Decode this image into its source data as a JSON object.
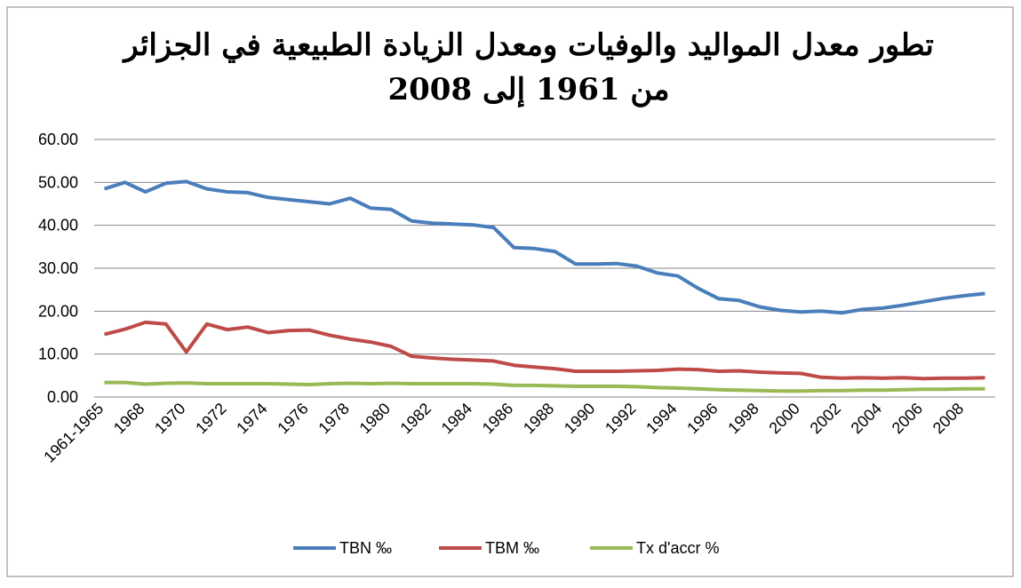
{
  "chart_data": {
    "type": "line",
    "title": [
      "تطور معدل المواليد والوفيات ومعدل الزيادة الطبيعية في الجزائر",
      "من 1961 إلى 2008"
    ],
    "categories": [
      "1961-1965",
      null,
      "1968",
      null,
      "1970",
      null,
      "1972",
      null,
      "1974",
      null,
      "1976",
      null,
      "1978",
      null,
      "1980",
      null,
      "1982",
      null,
      "1984",
      null,
      "1986",
      null,
      "1988",
      null,
      "1990",
      null,
      "1992",
      null,
      "1994",
      null,
      "1996",
      null,
      "1998",
      null,
      "2000",
      null,
      "2002",
      null,
      "2004",
      null,
      "2006",
      null,
      "2008",
      null
    ],
    "series": [
      {
        "name": "TBN ‰",
        "color": "#4a7ebb",
        "values": [
          48.5,
          50,
          47.8,
          49.8,
          50.2,
          48.5,
          47.8,
          47.6,
          46.5,
          46,
          45.5,
          45,
          46.3,
          44,
          43.7,
          41,
          40.5,
          40.3,
          40.1,
          39.5,
          34.8,
          34.6,
          33.9,
          31,
          31,
          31.1,
          30.5,
          28.9,
          28.2,
          25.3,
          22.9,
          22.5,
          21,
          20.2,
          19.8,
          20,
          19.6,
          20.4,
          20.7,
          21.4,
          22.2,
          23,
          23.6,
          24.1
        ]
      },
      {
        "name": "TBM ‰",
        "color": "#be4b48",
        "values": [
          14.6,
          15.8,
          17.4,
          17,
          10.5,
          17,
          15.7,
          16.3,
          15,
          15.5,
          15.6,
          14.4,
          13.5,
          12.8,
          11.8,
          9.5,
          9.1,
          8.8,
          8.6,
          8.4,
          7.4,
          7,
          6.6,
          6,
          6,
          6,
          6.1,
          6.2,
          6.5,
          6.4,
          6,
          6.1,
          5.8,
          5.6,
          5.5,
          4.6,
          4.4,
          4.5,
          4.4,
          4.5,
          4.3,
          4.4,
          4.4,
          4.5
        ]
      },
      {
        "name": "Tx d'accr %",
        "color": "#98b954",
        "values": [
          3.4,
          3.4,
          3.0,
          3.2,
          3.3,
          3.1,
          3.1,
          3.1,
          3.1,
          3.0,
          2.9,
          3.1,
          3.2,
          3.1,
          3.2,
          3.1,
          3.1,
          3.1,
          3.1,
          3.0,
          2.7,
          2.7,
          2.6,
          2.5,
          2.5,
          2.5,
          2.4,
          2.2,
          2.1,
          1.9,
          1.7,
          1.6,
          1.5,
          1.4,
          1.4,
          1.5,
          1.5,
          1.6,
          1.6,
          1.7,
          1.8,
          1.8,
          1.9,
          1.9
        ]
      }
    ],
    "ylim": [
      0,
      60
    ],
    "yticks": [
      {
        "value": 0,
        "label": "0.00"
      },
      {
        "value": 10,
        "label": "10.00"
      },
      {
        "value": 20,
        "label": "20.00"
      },
      {
        "value": 30,
        "label": "30.00"
      },
      {
        "value": 40,
        "label": "40.00"
      },
      {
        "value": 50,
        "label": "50.00"
      },
      {
        "value": 60,
        "label": "60.00"
      }
    ],
    "grid": true,
    "legend": "bottom"
  }
}
